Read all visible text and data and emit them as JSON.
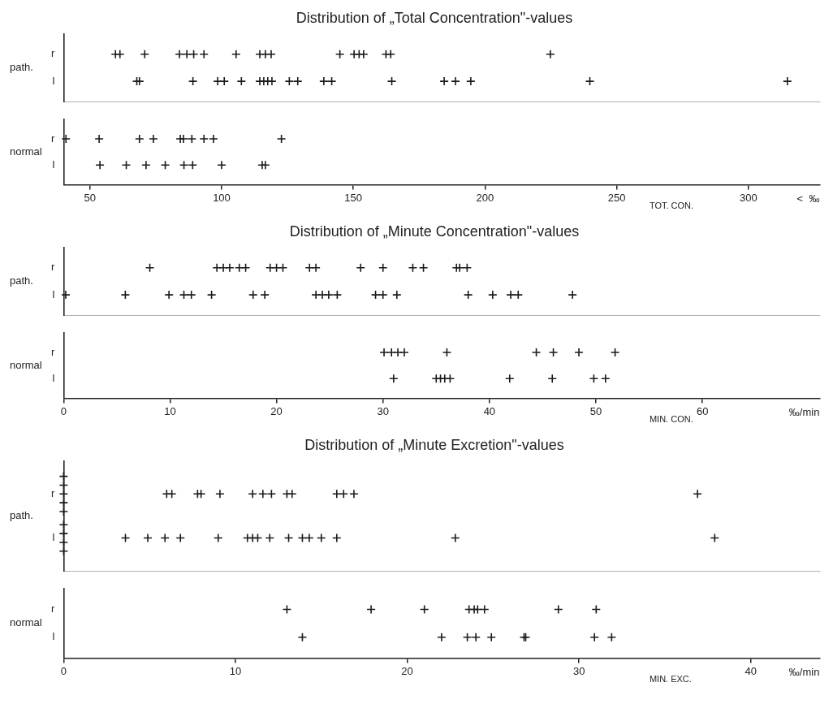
{
  "chart_data": [
    {
      "type": "scatter",
      "title": "Distribution of „Total Concentration\"-values",
      "ylabel": "path.",
      "orientation": "horizontal",
      "marker": "cross",
      "tick_labels": "y",
      "categories": [
        "r",
        "l"
      ],
      "xlim": [
        40,
        327
      ],
      "xticks": [
        50,
        100,
        150,
        200,
        250,
        300
      ],
      "series": [
        {
          "color": "#1a1a1a",
          "x": [
            "r",
            "r",
            "r",
            "r",
            "r",
            "r",
            "r",
            "r",
            "r",
            "r",
            "r",
            "r",
            "r",
            "r",
            "r",
            "r",
            "r",
            "r"
          ],
          "values": [
            59.7,
            61.4,
            70.8,
            84.0,
            86.8,
            89.4,
            93.3,
            105.5,
            114.5,
            116.6,
            118.8,
            144.9,
            150.3,
            152.2,
            153.9,
            162.4,
            164.2,
            224.8
          ]
        },
        {
          "color": "#1a1a1a",
          "x": [
            "l",
            "l",
            "l",
            "l",
            "l",
            "l",
            "l",
            "l",
            "l",
            "l",
            "l",
            "l",
            "l",
            "l",
            "l",
            "l",
            "l",
            "l",
            "l",
            "l"
          ],
          "values": [
            67.8,
            68.8,
            89.1,
            98.5,
            101.0,
            107.5,
            114.5,
            116.0,
            117.5,
            119.1,
            125.7,
            128.9,
            138.8,
            141.8,
            164.6,
            184.5,
            188.8,
            194.6,
            239.8,
            314.8
          ]
        }
      ]
    },
    {
      "type": "scatter",
      "ylabel": "normal",
      "xlabel": "TOT. CON.",
      "orientation": "horizontal",
      "marker": "cross",
      "categories": [
        "r",
        "l"
      ],
      "xlim": [
        40,
        327
      ],
      "xticks": [
        50,
        100,
        150,
        200,
        250,
        300
      ],
      "annotations": [
        "<  ‰"
      ],
      "series": [
        {
          "color": "#1a1a1a",
          "x": [
            "r",
            "r",
            "r",
            "r",
            "r",
            "r",
            "r",
            "r",
            "r",
            "r"
          ],
          "values": [
            40.9,
            53.5,
            68.8,
            74.1,
            84.3,
            85.5,
            88.7,
            93.3,
            96.9,
            122.7
          ]
        },
        {
          "color": "#1a1a1a",
          "x": [
            "l",
            "l",
            "l",
            "l",
            "l",
            "l",
            "l",
            "l",
            "l"
          ],
          "values": [
            53.8,
            63.8,
            71.3,
            78.6,
            85.7,
            89.0,
            100,
            115.4,
            116.6
          ]
        }
      ]
    },
    {
      "type": "scatter",
      "title": "Distribution of „Minute Concentration\"-values",
      "ylabel": "path.",
      "orientation": "horizontal",
      "marker": "cross",
      "tick_labels": "y",
      "categories": [
        "r",
        "l"
      ],
      "xlim": [
        0,
        71
      ],
      "xticks": [
        0,
        10,
        20,
        30,
        40,
        50,
        60
      ],
      "series": [
        {
          "color": "#1a1a1a",
          "x": [
            "r",
            "r",
            "r",
            "r",
            "r",
            "r",
            "r",
            "r",
            "r",
            "r",
            "r",
            "r",
            "r",
            "r",
            "r",
            "r",
            "r",
            "r"
          ],
          "values": [
            8.1,
            14.4,
            15.0,
            15.6,
            16.5,
            17.1,
            19.4,
            20.0,
            20.6,
            23.1,
            23.7,
            27.9,
            30,
            32.8,
            33.8,
            36.9,
            37.2,
            37.9
          ]
        },
        {
          "color": "#1a1a1a",
          "x": [
            "l",
            "l",
            "l",
            "l",
            "l",
            "l",
            "l",
            "l",
            "l",
            "l",
            "l",
            "l",
            "l",
            "l",
            "l",
            "l",
            "l",
            "l",
            "l",
            "l"
          ],
          "values": [
            0.2,
            5.8,
            9.9,
            11.3,
            12.0,
            13.9,
            17.8,
            18.9,
            23.7,
            24.3,
            24.9,
            25.7,
            29.3,
            30.0,
            31.3,
            38.0,
            40.3,
            42.0,
            42.7,
            47.8
          ]
        }
      ]
    },
    {
      "type": "scatter",
      "ylabel": "normal",
      "xlabel": "MIN. CON.",
      "orientation": "horizontal",
      "marker": "cross",
      "categories": [
        "r",
        "l"
      ],
      "xlim": [
        0,
        71
      ],
      "xticks": [
        0,
        10,
        20,
        30,
        40,
        50,
        60
      ],
      "annotations": [
        "‰/min"
      ],
      "series": [
        {
          "color": "#1a1a1a",
          "x": [
            "r",
            "r",
            "r",
            "r",
            "r",
            "r",
            "r",
            "r",
            "r"
          ],
          "values": [
            30.1,
            30.8,
            31.4,
            32.0,
            36.0,
            44.4,
            46.0,
            48.4,
            51.8
          ]
        },
        {
          "color": "#1a1a1a",
          "x": [
            "l",
            "l",
            "l",
            "l",
            "l",
            "l",
            "l",
            "l",
            "l"
          ],
          "values": [
            31.0,
            35.0,
            35.4,
            35.8,
            36.3,
            41.9,
            45.9,
            49.8,
            50.9
          ]
        }
      ]
    },
    {
      "type": "scatter",
      "title": "Distribution of „Minute Excretion\"-values",
      "ylabel": "path.",
      "orientation": "horizontal",
      "marker": "cross",
      "tick_labels": "y",
      "categories": [
        "r",
        "l"
      ],
      "xlim": [
        0,
        44
      ],
      "xticks": [
        0,
        10,
        20,
        30,
        40
      ],
      "series": [
        {
          "color": "#1a1a1a",
          "x": [
            "r",
            "r",
            "r",
            "r",
            "r",
            "r",
            "r",
            "r",
            "r",
            "r",
            "r",
            "r",
            "r",
            "r",
            "r",
            "r",
            "r",
            "r",
            "r"
          ],
          "values": [
            0,
            0,
            0,
            0,
            0,
            6.0,
            6.3,
            7.8,
            8.0,
            9.1,
            11.0,
            11.6,
            12.1,
            13.0,
            13.3,
            15.9,
            16.3,
            16.9,
            36.9
          ]
        },
        {
          "color": "#1a1a1a",
          "x": [
            "l",
            "l",
            "l",
            "l",
            "l",
            "l",
            "l",
            "l",
            "l",
            "l",
            "l",
            "l",
            "l",
            "l",
            "l",
            "l",
            "l",
            "l",
            "l",
            "l"
          ],
          "values": [
            0,
            0,
            0,
            0,
            3.6,
            4.9,
            5.9,
            6.8,
            9.0,
            10.7,
            11.0,
            11.3,
            12.0,
            13.1,
            13.9,
            14.3,
            15.0,
            15.9,
            22.8,
            37.9
          ]
        }
      ]
    },
    {
      "type": "scatter",
      "ylabel": "normal",
      "xlabel": "MIN. EXC.",
      "orientation": "horizontal",
      "marker": "cross",
      "categories": [
        "r",
        "l"
      ],
      "xlim": [
        0,
        44
      ],
      "xticks": [
        0,
        10,
        20,
        30,
        40
      ],
      "annotations": [
        "‰/min"
      ],
      "series": [
        {
          "color": "#1a1a1a",
          "x": [
            "r",
            "r",
            "r",
            "r",
            "r",
            "r",
            "r",
            "r",
            "r"
          ],
          "values": [
            13.0,
            17.9,
            21.0,
            23.6,
            23.9,
            24.1,
            24.5,
            28.8,
            31.0
          ]
        },
        {
          "color": "#1a1a1a",
          "x": [
            "l",
            "l",
            "l",
            "l",
            "l",
            "l",
            "l",
            "l",
            "l"
          ],
          "values": [
            13.9,
            22.0,
            23.5,
            24.0,
            24.9,
            26.8,
            26.9,
            30.9,
            31.9
          ]
        }
      ]
    }
  ]
}
